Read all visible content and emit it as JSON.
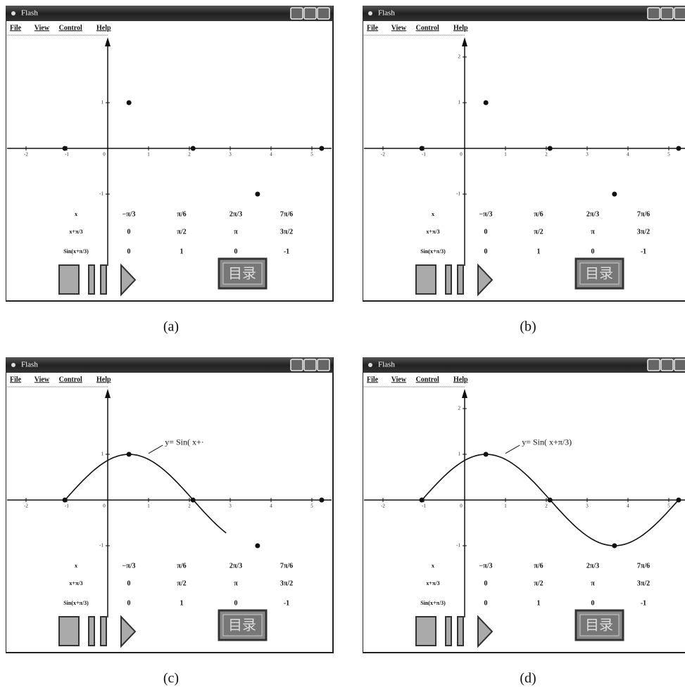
{
  "panels": [
    {
      "caption": "(a)",
      "window_title": "Flash",
      "menu": [
        "File",
        "View",
        "Control",
        "Help"
      ],
      "x_ticks": [
        -2,
        -1,
        0,
        1,
        2,
        3,
        4,
        5
      ],
      "y_ticks": [
        1,
        -1
      ],
      "points": {
        "x": [
          -1.05,
          0.52,
          2.09,
          3.67,
          5.24
        ],
        "y": [
          0,
          1,
          0,
          -1,
          0
        ]
      },
      "table": {
        "rows": [
          [
            "x",
            "−π/3",
            "π/6",
            "2π/3",
            "7π/6"
          ],
          [
            "x+π/3",
            "0",
            "π/2",
            "π",
            "3π/2"
          ],
          [
            "Sin(x+π/3)",
            "0",
            "1",
            "0",
            "-1"
          ]
        ]
      },
      "toc_button": "目录"
    },
    {
      "caption": "(b)",
      "window_title": "Flash",
      "menu": [
        "File",
        "View",
        "Control",
        "Help"
      ],
      "x_ticks": [
        -2,
        -1,
        0,
        1,
        2,
        3,
        4,
        5
      ],
      "y_ticks": [
        2,
        1,
        -1
      ],
      "points": {
        "x": [
          -1.05,
          0.52,
          2.09,
          3.67,
          5.24
        ],
        "y": [
          0,
          1,
          0,
          -1,
          0
        ]
      },
      "table": {
        "rows": [
          [
            "x",
            "−π/3",
            "π/6",
            "2π/3",
            "7π/6"
          ],
          [
            "x+π/3",
            "0",
            "π/2",
            "π",
            "3π/2"
          ],
          [
            "Sin(x+π/3)",
            "0",
            "1",
            "0",
            "-1"
          ]
        ]
      },
      "toc_button": "目录"
    },
    {
      "caption": "(c)",
      "window_title": "Flash",
      "menu": [
        "File",
        "View",
        "Control",
        "Help"
      ],
      "x_ticks": [
        -2,
        -1,
        0,
        1,
        2,
        3,
        4,
        5
      ],
      "y_ticks": [
        1,
        -1
      ],
      "points": {
        "x": [
          -1.05,
          0.52,
          2.09,
          3.67,
          5.24
        ],
        "y": [
          0,
          1,
          0,
          -1,
          0
        ]
      },
      "curve": {
        "label": "y= Sin( x+·",
        "x_range": [
          -1.05,
          2.9
        ]
      },
      "table": {
        "rows": [
          [
            "x",
            "−π/3",
            "π/6",
            "2π/3",
            "7π/6"
          ],
          [
            "x+π/3",
            "0",
            "π/2",
            "π",
            "3π/2"
          ],
          [
            "Sin(x+π/3)",
            "0",
            "1",
            "0",
            "-1"
          ]
        ]
      },
      "toc_button": "目录"
    },
    {
      "caption": "(d)",
      "window_title": "Flash",
      "menu": [
        "File",
        "View",
        "Control",
        "Help"
      ],
      "x_ticks": [
        -2,
        -1,
        0,
        1,
        2,
        3,
        4,
        5
      ],
      "y_ticks": [
        2,
        1,
        -1
      ],
      "points": {
        "x": [
          -1.05,
          0.52,
          2.09,
          3.67,
          5.24
        ],
        "y": [
          0,
          1,
          0,
          -1,
          0
        ]
      },
      "curve": {
        "label": "y= Sin( x+π/3)",
        "x_range": [
          -1.05,
          5.24
        ]
      },
      "table": {
        "rows": [
          [
            "x",
            "−π/3",
            "π/6",
            "2π/3",
            "7π/6"
          ],
          [
            "x+π/3",
            "0",
            "π/2",
            "π",
            "3π/2"
          ],
          [
            "Sin(x+π/3)",
            "0",
            "1",
            "0",
            "-1"
          ]
        ]
      },
      "toc_button": "目录"
    }
  ]
}
